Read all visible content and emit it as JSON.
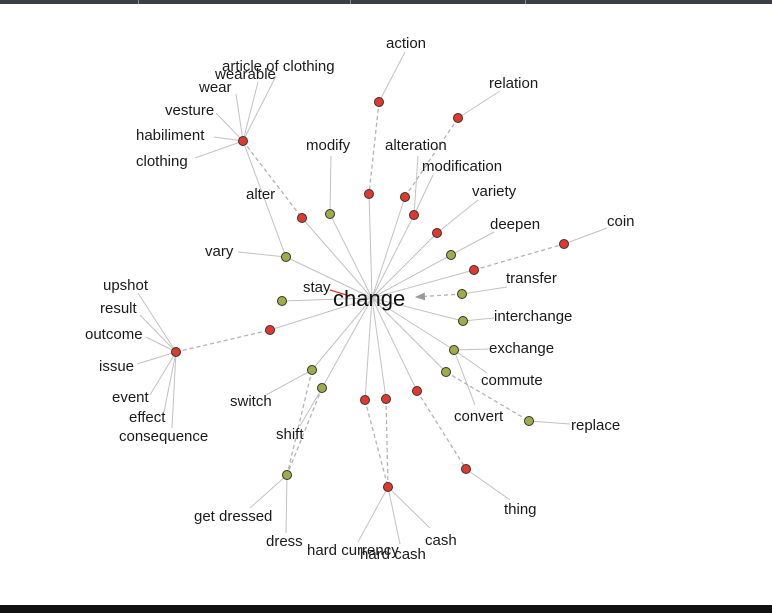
{
  "center": {
    "label": "change"
  },
  "colors": {
    "noun_node": "#e0392b",
    "verb_node": "#a0ac48",
    "edge": "#c2c2c2",
    "dashed_edge": "#b3b3b3",
    "arrow": "#999999",
    "text": "#1a1a1a"
  },
  "nodes": [
    {
      "id": "n_clothing",
      "color": "red"
    },
    {
      "id": "n_alter",
      "color": "red"
    },
    {
      "id": "n_modify",
      "color": "green"
    },
    {
      "id": "n_action",
      "color": "red"
    },
    {
      "id": "n_alteration",
      "color": "red"
    },
    {
      "id": "n_relation",
      "color": "red"
    },
    {
      "id": "n_altmod",
      "color": "red"
    },
    {
      "id": "n_modif",
      "color": "red"
    },
    {
      "id": "n_variety",
      "color": "red"
    },
    {
      "id": "n_deepen",
      "color": "green"
    },
    {
      "id": "n_coin_mid",
      "color": "red"
    },
    {
      "id": "n_coin",
      "color": "red"
    },
    {
      "id": "n_transfer",
      "color": "green"
    },
    {
      "id": "n_interchange",
      "color": "green"
    },
    {
      "id": "n_exchange",
      "color": "green"
    },
    {
      "id": "n_commute",
      "color": "green"
    },
    {
      "id": "n_replace",
      "color": "green"
    },
    {
      "id": "n_thing_mid",
      "color": "red"
    },
    {
      "id": "n_thing",
      "color": "red"
    },
    {
      "id": "n_cash_a",
      "color": "red"
    },
    {
      "id": "n_cash_b",
      "color": "red"
    },
    {
      "id": "n_cash",
      "color": "red"
    },
    {
      "id": "n_switch",
      "color": "green"
    },
    {
      "id": "n_shift",
      "color": "green"
    },
    {
      "id": "n_dress",
      "color": "green"
    },
    {
      "id": "n_vary",
      "color": "green"
    },
    {
      "id": "n_stay",
      "color": "green"
    },
    {
      "id": "n_result_mid",
      "color": "red"
    },
    {
      "id": "n_result",
      "color": "red"
    }
  ],
  "labels": [
    {
      "id": "l_article",
      "text": "article of clothing"
    },
    {
      "id": "l_wearable",
      "text": "wearable"
    },
    {
      "id": "l_wear",
      "text": "wear"
    },
    {
      "id": "l_vesture",
      "text": "vesture"
    },
    {
      "id": "l_habiliment",
      "text": "habiliment"
    },
    {
      "id": "l_clothing",
      "text": "clothing"
    },
    {
      "id": "l_modify",
      "text": "modify"
    },
    {
      "id": "l_alter",
      "text": "alter"
    },
    {
      "id": "l_action",
      "text": "action"
    },
    {
      "id": "l_relation",
      "text": "relation"
    },
    {
      "id": "l_alteration",
      "text": "alteration"
    },
    {
      "id": "l_modification",
      "text": "modification"
    },
    {
      "id": "l_variety",
      "text": "variety"
    },
    {
      "id": "l_deepen",
      "text": "deepen"
    },
    {
      "id": "l_coin",
      "text": "coin"
    },
    {
      "id": "l_vary",
      "text": "vary"
    },
    {
      "id": "l_transfer",
      "text": "transfer"
    },
    {
      "id": "l_stay",
      "text": "stay"
    },
    {
      "id": "l_upshot",
      "text": "upshot"
    },
    {
      "id": "l_interchange",
      "text": "interchange"
    },
    {
      "id": "l_result",
      "text": "result"
    },
    {
      "id": "l_outcome",
      "text": "outcome"
    },
    {
      "id": "l_exchange",
      "text": "exchange"
    },
    {
      "id": "l_issue",
      "text": "issue"
    },
    {
      "id": "l_commute",
      "text": "commute"
    },
    {
      "id": "l_event",
      "text": "event"
    },
    {
      "id": "l_convert",
      "text": "convert"
    },
    {
      "id": "l_switch",
      "text": "switch"
    },
    {
      "id": "l_effect",
      "text": "effect"
    },
    {
      "id": "l_replace",
      "text": "replace"
    },
    {
      "id": "l_consequence",
      "text": "consequence"
    },
    {
      "id": "l_shift",
      "text": "shift"
    },
    {
      "id": "l_thing",
      "text": "thing"
    },
    {
      "id": "l_getdressed",
      "text": "get dressed"
    },
    {
      "id": "l_cash",
      "text": "cash"
    },
    {
      "id": "l_dress",
      "text": "dress"
    },
    {
      "id": "l_hardcurrency",
      "text": "hard currency"
    },
    {
      "id": "l_hardcash",
      "text": "hard cash"
    }
  ]
}
